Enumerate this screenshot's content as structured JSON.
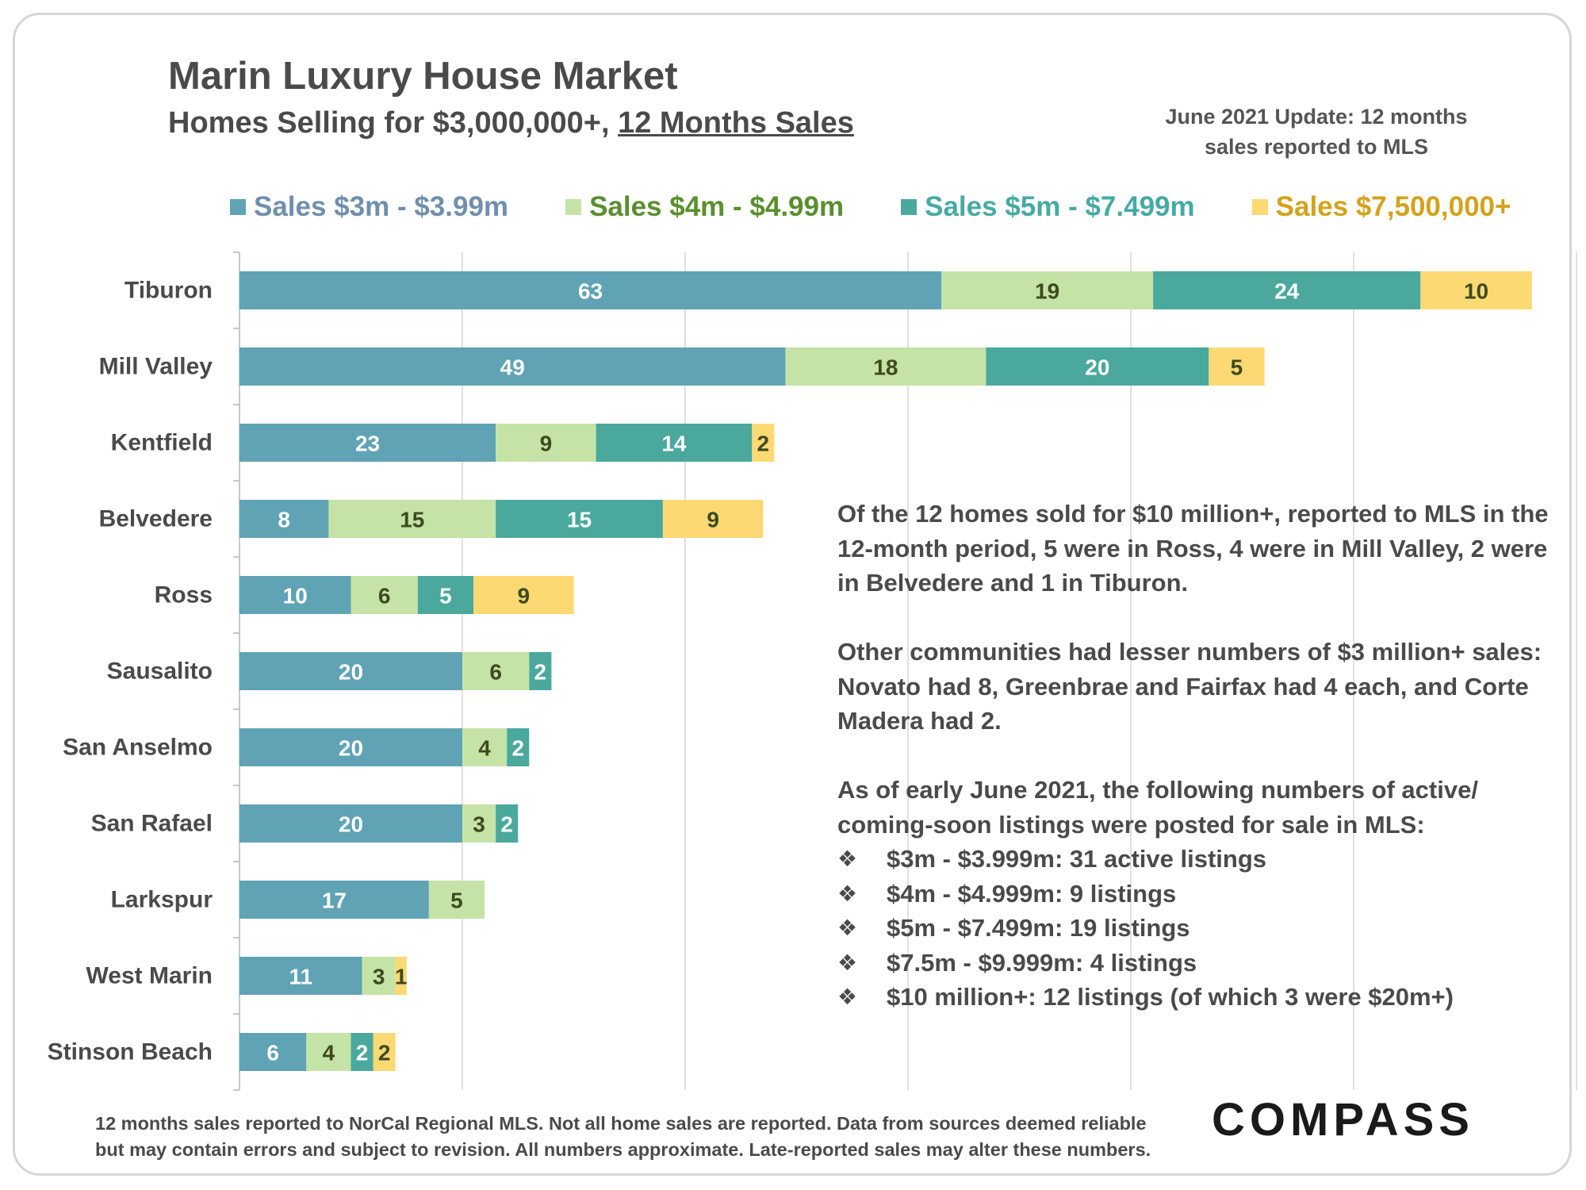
{
  "title": "Marin Luxury House Market",
  "subtitle_main": "Homes Selling for $3,000,000+, ",
  "subtitle_underlined": "12 Months Sales",
  "update_line1": "June 2021 Update: 12 months",
  "update_line2": "sales reported to MLS",
  "colors": {
    "s3m": "#5fa3b5",
    "s4m": "#c5e3a6",
    "s5m": "#4aa89d",
    "s75m": "#fcd972",
    "gridline": "#e0e0e0",
    "axis": "#c8c8c8",
    "category_text": "#4a4a4a",
    "label_dark": "#3d4a1e"
  },
  "legend": [
    {
      "label": "Sales $3m - $3.99m",
      "swatch": "#5fa3b5",
      "text_color": "#6f8fae"
    },
    {
      "label": "Sales $4m - $4.99m",
      "swatch": "#c5e3a6",
      "text_color": "#5a8f2e"
    },
    {
      "label": "Sales $5m - $7.499m",
      "swatch": "#4aa89d",
      "text_color": "#46aaa3"
    },
    {
      "label": "Sales $7,500,000+",
      "swatch": "#fcd972",
      "text_color": "#d4a21c"
    }
  ],
  "chart_data": {
    "type": "bar",
    "orientation": "horizontal",
    "stacked": true,
    "categories": [
      "Tiburon",
      "Mill Valley",
      "Kentfield",
      "Belvedere",
      "Ross",
      "Sausalito",
      "San Anselmo",
      "San Rafael",
      "Larkspur",
      "West Marin",
      "Stinson Beach"
    ],
    "series": [
      {
        "name": "Sales $3m - $3.99m",
        "values": [
          63,
          49,
          23,
          8,
          10,
          20,
          20,
          20,
          17,
          11,
          6
        ]
      },
      {
        "name": "Sales $4m - $4.99m",
        "values": [
          19,
          18,
          9,
          15,
          6,
          6,
          4,
          3,
          5,
          3,
          4
        ]
      },
      {
        "name": "Sales $5m - $7.499m",
        "values": [
          24,
          20,
          14,
          15,
          5,
          2,
          2,
          2,
          0,
          0,
          2
        ]
      },
      {
        "name": "Sales $7,500,000+",
        "values": [
          10,
          5,
          2,
          9,
          9,
          0,
          0,
          0,
          0,
          1,
          2
        ]
      }
    ],
    "xlim": [
      0,
      120
    ],
    "grid": true,
    "legend_position": "top"
  },
  "notes": {
    "p1": "Of the 12 homes sold for $10 million+, reported to MLS in the 12-month period, 5 were in Ross, 4 were in Mill Valley, 2 were in Belvedere and 1 in Tiburon.",
    "p2": "Other communities had lesser numbers of $3 million+ sales: Novato had 8, Greenbrae and Fairfax had 4 each, and Corte Madera had 2.",
    "p3": "As of early June 2021, the following numbers of active/ coming-soon listings were posted for sale in MLS:",
    "bullet_icon": "four-diamond-ornament",
    "bullets": [
      "$3m - $3.999m: 31 active listings",
      "$4m - $4.999m: 9 listings",
      "$5m - $7.499m: 19 listings",
      "$7.5m - $9.999m:  4 listings",
      "$10 million+:  12 listings (of which 3 were $20m+)"
    ]
  },
  "footnote_line1": "12 months sales reported to NorCal Regional MLS. Not all home sales are reported. Data from sources deemed reliable",
  "footnote_line2": "but may contain errors and subject to revision. All numbers approximate. Late-reported sales may alter these numbers.",
  "logo_text": "COMPASS"
}
